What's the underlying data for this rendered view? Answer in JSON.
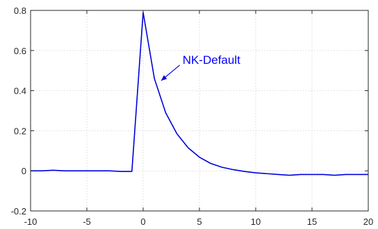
{
  "chart_data": {
    "type": "line",
    "title": "",
    "xlabel": "",
    "ylabel": "",
    "xlim": [
      -10,
      20
    ],
    "ylim": [
      -0.2,
      0.8
    ],
    "grid": true,
    "x_ticks": [
      -10,
      -5,
      0,
      5,
      10,
      15,
      20
    ],
    "x_tick_labels": [
      "-10",
      "-5",
      "0",
      "5",
      "10",
      "15",
      "20"
    ],
    "y_ticks": [
      -0.2,
      0,
      0.2,
      0.4,
      0.6,
      0.8
    ],
    "y_tick_labels": [
      "-0.2",
      "0",
      "0.2",
      "0.4",
      "0.6",
      "0.8"
    ],
    "series": [
      {
        "name": "NK-Default",
        "color": "#0000dd",
        "x": [
          -10,
          -9,
          -8,
          -7,
          -6,
          -5,
          -4,
          -3,
          -2,
          -1,
          0,
          1,
          2,
          3,
          4,
          5,
          6,
          7,
          8,
          9,
          10,
          11,
          12,
          13,
          14,
          15,
          16,
          17,
          18,
          19,
          20
        ],
        "y": [
          0,
          0,
          0.003,
          0,
          0,
          0,
          0,
          0,
          -0.003,
          -0.003,
          0.79,
          0.46,
          0.29,
          0.185,
          0.115,
          0.068,
          0.037,
          0.018,
          0.006,
          -0.003,
          -0.01,
          -0.014,
          -0.018,
          -0.022,
          -0.018,
          -0.018,
          -0.018,
          -0.022,
          -0.018,
          -0.018,
          -0.018
        ]
      }
    ],
    "annotations": [
      {
        "text": "NK-Default",
        "text_at": [
          3.5,
          0.555
        ],
        "arrow_to": [
          1.6,
          0.45
        ]
      }
    ]
  }
}
